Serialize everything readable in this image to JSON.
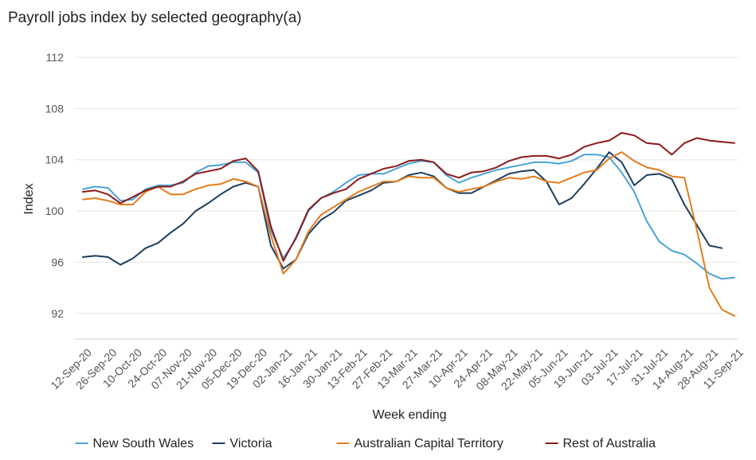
{
  "chart_data": {
    "type": "line",
    "title": "Payroll jobs index by selected geography(a)",
    "xlabel": "Week ending",
    "ylabel": "Index",
    "ylim": [
      90,
      112
    ],
    "yticks": [
      92,
      96,
      100,
      104,
      108,
      112
    ],
    "grid": true,
    "legend_position": "bottom",
    "x_tick_labels": [
      "12-Sep-20",
      "26-Sep-20",
      "10-Oct-20",
      "24-Oct-20",
      "07-Nov-20",
      "21-Nov-20",
      "05-Dec-20",
      "19-Dec-20",
      "02-Jan-21",
      "16-Jan-21",
      "30-Jan-21",
      "13-Feb-21",
      "27-Feb-21",
      "13-Mar-21",
      "27-Mar-21",
      "10-Apr-21",
      "24-Apr-21",
      "08-May-21",
      "22-May-21",
      "05-Jun-21",
      "19-Jun-21",
      "03-Jul-21",
      "17-Jul-21",
      "31-Jul-21",
      "14-Aug-21",
      "28-Aug-21",
      "11-Sep-21"
    ],
    "x_count": 53,
    "series": [
      {
        "name": "New South Wales",
        "color": "#4aa3d6",
        "values": [
          101.7,
          101.9,
          101.8,
          100.8,
          100.9,
          101.7,
          102.0,
          102.0,
          102.2,
          103.0,
          103.5,
          103.6,
          103.8,
          103.8,
          103.0,
          98.5,
          96.3,
          97.8,
          100.0,
          101.0,
          101.5,
          102.2,
          102.8,
          102.9,
          102.9,
          103.3,
          103.7,
          103.9,
          103.8,
          102.8,
          102.2,
          102.6,
          102.9,
          103.2,
          103.4,
          103.6,
          103.8,
          103.8,
          103.7,
          103.9,
          104.4,
          104.4,
          104.2,
          103.0,
          101.5,
          99.2,
          97.6,
          96.9,
          96.6,
          95.9,
          95.1,
          94.7,
          94.8
        ]
      },
      {
        "name": "Victoria",
        "color": "#1b3f5e",
        "values": [
          96.4,
          96.5,
          96.4,
          95.8,
          96.3,
          97.1,
          97.5,
          98.3,
          99.0,
          100.0,
          100.6,
          101.3,
          101.9,
          102.2,
          101.9,
          97.3,
          95.5,
          96.2,
          98.2,
          99.3,
          99.9,
          100.8,
          101.2,
          101.6,
          102.2,
          102.3,
          102.8,
          103.0,
          102.7,
          101.8,
          101.4,
          101.4,
          101.9,
          102.4,
          102.9,
          103.1,
          103.2,
          102.3,
          100.5,
          101.0,
          102.1,
          103.3,
          104.6,
          103.8,
          102.0,
          102.8,
          102.9,
          102.5,
          100.5,
          98.9,
          97.3,
          97.1,
          null
        ]
      },
      {
        "name": "Australian Capital Territory",
        "color": "#e37c1c",
        "values": [
          100.9,
          101.0,
          100.8,
          100.5,
          100.5,
          101.5,
          101.9,
          101.3,
          101.3,
          101.7,
          102.0,
          102.1,
          102.5,
          102.3,
          101.9,
          98.1,
          95.1,
          96.2,
          98.4,
          99.7,
          100.3,
          100.9,
          101.5,
          101.9,
          102.3,
          102.3,
          102.7,
          102.6,
          102.6,
          101.8,
          101.5,
          101.7,
          101.9,
          102.3,
          102.6,
          102.5,
          102.7,
          102.3,
          102.2,
          102.6,
          103.0,
          103.2,
          104.1,
          104.6,
          103.9,
          103.4,
          103.2,
          102.7,
          102.6,
          98.5,
          94.0,
          92.3,
          91.8
        ]
      },
      {
        "name": "Rest of Australia",
        "color": "#8b1a1a",
        "values": [
          101.5,
          101.6,
          101.3,
          100.6,
          101.1,
          101.6,
          101.9,
          101.9,
          102.3,
          102.9,
          103.1,
          103.3,
          103.9,
          104.1,
          103.1,
          98.8,
          96.1,
          97.9,
          100.1,
          101.0,
          101.4,
          101.7,
          102.5,
          102.9,
          103.3,
          103.5,
          103.9,
          104.0,
          103.8,
          102.9,
          102.6,
          103.0,
          103.1,
          103.4,
          103.9,
          104.2,
          104.3,
          104.3,
          104.1,
          104.4,
          105.0,
          105.3,
          105.5,
          106.1,
          105.9,
          105.3,
          105.2,
          104.4,
          105.3,
          105.7,
          105.5,
          105.4,
          105.3
        ]
      }
    ]
  }
}
